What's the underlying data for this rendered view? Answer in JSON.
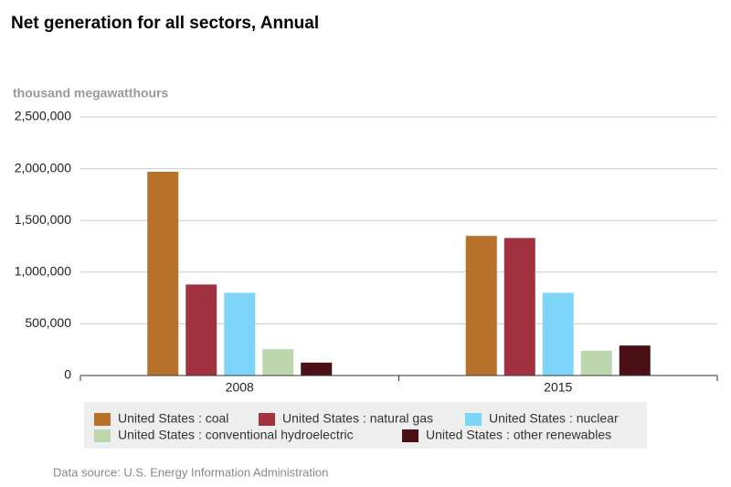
{
  "chart_data": {
    "type": "bar",
    "title": "Net generation for all sectors, Annual",
    "y_label": "thousand megawatthours",
    "source": "Data source: U.S. Energy Information Administration",
    "categories": [
      "2008",
      "2015"
    ],
    "series": [
      {
        "name": "United States : coal",
        "color": "#b8712a",
        "values": [
          1970000,
          1350000
        ]
      },
      {
        "name": "United States : natural gas",
        "color": "#a33241",
        "values": [
          880000,
          1330000
        ]
      },
      {
        "name": "United States : nuclear",
        "color": "#7dd6f9",
        "values": [
          800000,
          800000
        ]
      },
      {
        "name": "United States : conventional hydroelectric",
        "color": "#bcd6ad",
        "values": [
          255000,
          240000
        ]
      },
      {
        "name": "United States : other renewables",
        "color": "#4a1016",
        "values": [
          125000,
          290000
        ]
      }
    ],
    "ylim": [
      0,
      2500000
    ],
    "yticks": [
      0,
      {
        "value": 500000,
        "label": "500,000"
      },
      {
        "value": 1000000,
        "label": "1,000,000"
      },
      {
        "value": 1500000,
        "label": "1,500,000"
      },
      {
        "value": 2000000,
        "label": "2,000,000"
      },
      {
        "value": 2500000,
        "label": "2,500,000"
      }
    ],
    "grid": true
  }
}
